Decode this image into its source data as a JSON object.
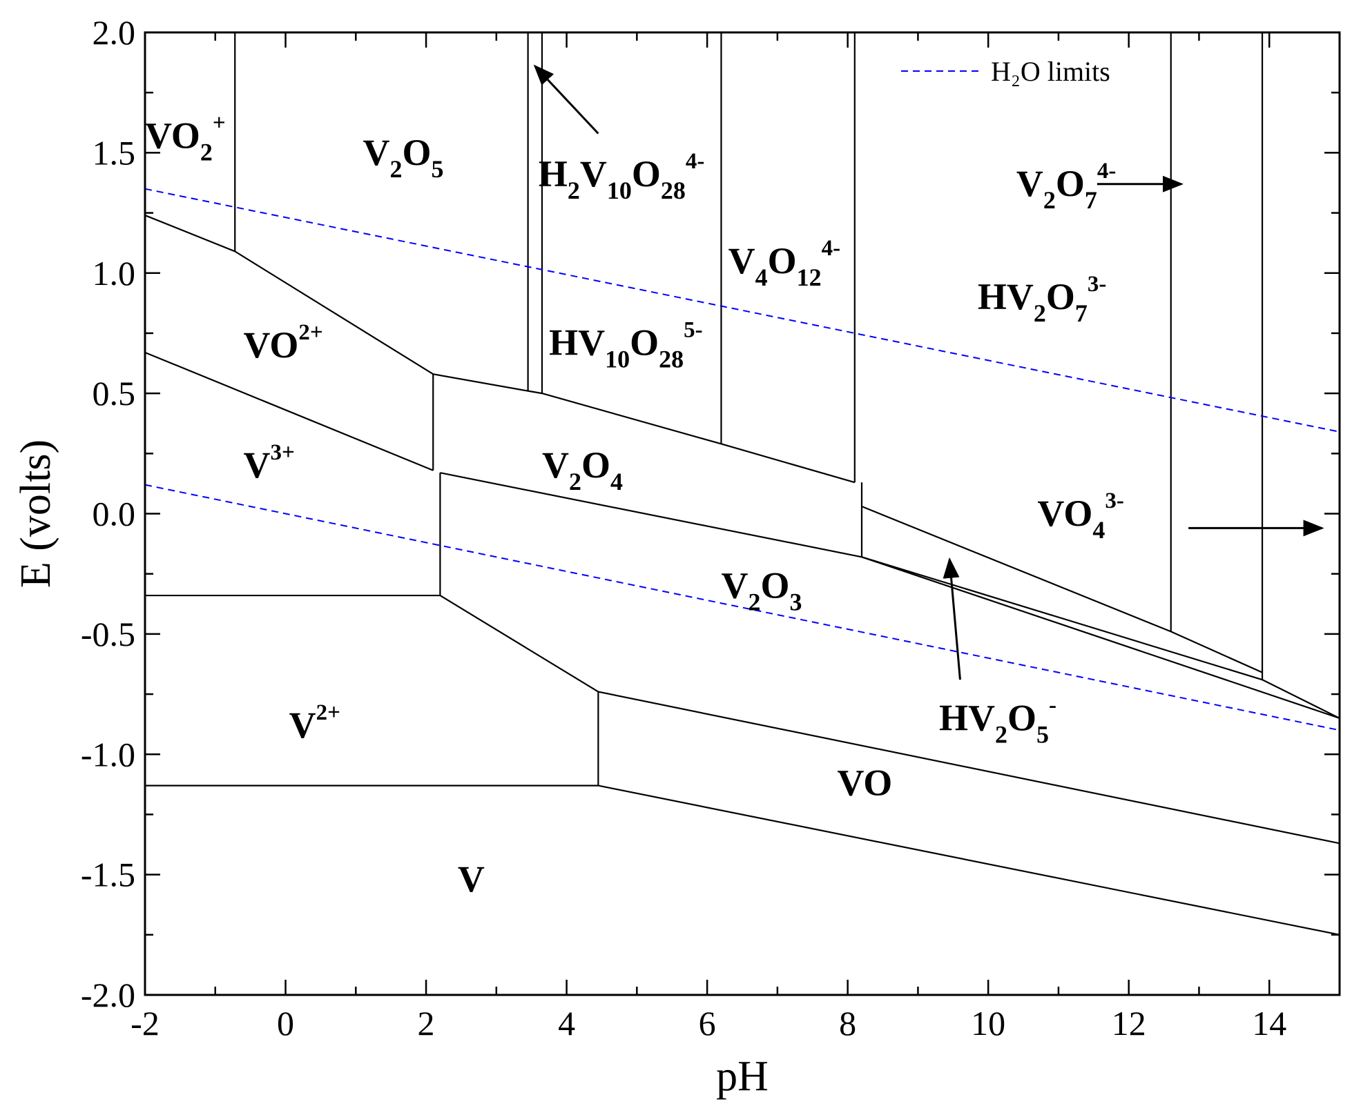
{
  "chart_data": {
    "type": "line",
    "title": "",
    "xlabel": "pH",
    "ylabel": "E (volts)",
    "xlim": [
      -2,
      15
    ],
    "ylim": [
      -2.0,
      2.0
    ],
    "x_ticks": [
      -2,
      0,
      2,
      4,
      6,
      8,
      10,
      12,
      14
    ],
    "y_ticks": [
      2.0,
      1.5,
      1.0,
      0.5,
      0.0,
      -0.5,
      -1.0,
      -1.5,
      -2.0
    ],
    "x_tick_labels": [
      "-2",
      "0",
      "2",
      "4",
      "6",
      "8",
      "10",
      "12",
      "14"
    ],
    "y_tick_labels": [
      "2.0",
      "1.5",
      "1.0",
      "0.5",
      "0.0",
      "-0.5",
      "-1.0",
      "-1.5",
      "-2.0"
    ],
    "grid": false,
    "legend": {
      "position": "top-right",
      "entries": [
        {
          "label": "H₂O limits",
          "color": "#0000ff",
          "style": "dashed"
        }
      ]
    },
    "water_limits": [
      {
        "x": [
          -2,
          15
        ],
        "y": [
          1.35,
          0.34
        ],
        "color": "#0000ff",
        "style": "dashed"
      },
      {
        "x": [
          -2,
          15
        ],
        "y": [
          0.12,
          -0.9
        ],
        "color": "#0000ff",
        "style": "dashed"
      }
    ],
    "boundaries": [
      {
        "x": [
          -2,
          -0.72,
          2.1
        ],
        "y": [
          1.24,
          1.09,
          0.58
        ]
      },
      {
        "x": [
          2.1,
          3.45,
          3.65,
          6.2,
          8.1
        ],
        "y": [
          0.58,
          0.51,
          0.5,
          0.29,
          0.13
        ]
      },
      {
        "x": [
          -2,
          2.1
        ],
        "y": [
          0.67,
          0.18
        ]
      },
      {
        "x": [
          2.2,
          8.2,
          15
        ],
        "y": [
          0.17,
          -0.18,
          -0.85
        ]
      },
      {
        "x": [
          8.2,
          12.6,
          13.9
        ],
        "y": [
          0.03,
          -0.49,
          -0.66
        ]
      },
      {
        "x": [
          8.2,
          13.9,
          15
        ],
        "y": [
          -0.18,
          -0.69,
          -0.85
        ]
      },
      {
        "x": [
          -2,
          2.2
        ],
        "y": [
          -0.34,
          -0.34
        ]
      },
      {
        "x": [
          2.2,
          4.45,
          15
        ],
        "y": [
          -0.34,
          -0.74,
          -1.37
        ]
      },
      {
        "x": [
          -2,
          4.45
        ],
        "y": [
          -1.13,
          -1.13
        ]
      },
      {
        "x": [
          4.45,
          15
        ],
        "y": [
          -1.13,
          -1.75
        ]
      },
      {
        "x": [
          -0.72,
          -0.72
        ],
        "y": [
          2.0,
          1.09
        ]
      },
      {
        "x": [
          3.45,
          3.45
        ],
        "y": [
          2.0,
          0.51
        ]
      },
      {
        "x": [
          3.65,
          3.65
        ],
        "y": [
          2.0,
          0.5
        ]
      },
      {
        "x": [
          6.2,
          6.2
        ],
        "y": [
          2.0,
          0.29
        ]
      },
      {
        "x": [
          8.1,
          8.1
        ],
        "y": [
          2.0,
          0.13
        ]
      },
      {
        "x": [
          12.6,
          12.6
        ],
        "y": [
          2.0,
          -0.49
        ]
      },
      {
        "x": [
          13.9,
          13.9
        ],
        "y": [
          2.0,
          -0.69
        ]
      },
      {
        "x": [
          2.1,
          2.1
        ],
        "y": [
          0.58,
          0.18
        ]
      },
      {
        "x": [
          2.2,
          2.2
        ],
        "y": [
          0.17,
          -0.34
        ]
      },
      {
        "x": [
          8.2,
          8.2
        ],
        "y": [
          0.13,
          -0.18
        ]
      },
      {
        "x": [
          4.45,
          4.45
        ],
        "y": [
          -0.74,
          -1.13
        ]
      }
    ],
    "regions": [
      {
        "parts": [
          [
            "VO",
            ""
          ],
          [
            "2",
            "sub"
          ],
          [
            "+",
            "sup"
          ]
        ],
        "x": -2.0,
        "y": 1.52
      },
      {
        "parts": [
          [
            "V",
            ""
          ],
          [
            "2",
            "sub"
          ],
          [
            "O",
            ""
          ],
          [
            "5",
            "sub"
          ]
        ],
        "x": 1.1,
        "y": 1.45
      },
      {
        "parts": [
          [
            "H",
            ""
          ],
          [
            "2",
            "sub"
          ],
          [
            "V",
            ""
          ],
          [
            "10",
            "sub"
          ],
          [
            "O",
            ""
          ],
          [
            "28",
            "sub"
          ],
          [
            "4-",
            "sup"
          ]
        ],
        "x": 3.6,
        "y": 1.36
      },
      {
        "parts": [
          [
            "V",
            ""
          ],
          [
            "4",
            "sub"
          ],
          [
            "O",
            ""
          ],
          [
            "12",
            "sub"
          ],
          [
            "4-",
            "sup"
          ]
        ],
        "x": 6.3,
        "y": 1.0
      },
      {
        "parts": [
          [
            "HV",
            ""
          ],
          [
            "10",
            "sub"
          ],
          [
            "O",
            ""
          ],
          [
            "28",
            "sub"
          ],
          [
            "5-",
            "sup"
          ]
        ],
        "x": 3.75,
        "y": 0.66
      },
      {
        "parts": [
          [
            "V",
            ""
          ],
          [
            "2",
            "sub"
          ],
          [
            "O",
            ""
          ],
          [
            "7",
            "sub"
          ],
          [
            "4-",
            "sup"
          ]
        ],
        "x": 10.4,
        "y": 1.32
      },
      {
        "parts": [
          [
            "HV",
            ""
          ],
          [
            "2",
            "sub"
          ],
          [
            "O",
            ""
          ],
          [
            "7",
            "sub"
          ],
          [
            "3-",
            "sup"
          ]
        ],
        "x": 9.85,
        "y": 0.85
      },
      {
        "parts": [
          [
            "VO",
            ""
          ],
          [
            "2+",
            "sup"
          ]
        ],
        "x": -0.6,
        "y": 0.65
      },
      {
        "parts": [
          [
            "V",
            ""
          ],
          [
            "3+",
            "sup"
          ]
        ],
        "x": -0.6,
        "y": 0.15
      },
      {
        "parts": [
          [
            "V",
            ""
          ],
          [
            "2",
            "sub"
          ],
          [
            "O",
            ""
          ],
          [
            "4",
            "sub"
          ]
        ],
        "x": 3.65,
        "y": 0.15
      },
      {
        "parts": [
          [
            "VO",
            ""
          ],
          [
            "4",
            "sub"
          ],
          [
            "3-",
            "sup"
          ]
        ],
        "x": 10.7,
        "y": -0.05
      },
      {
        "parts": [
          [
            "V",
            ""
          ],
          [
            "2",
            "sub"
          ],
          [
            "O",
            ""
          ],
          [
            "3",
            "sub"
          ]
        ],
        "x": 6.2,
        "y": -0.35
      },
      {
        "parts": [
          [
            "HV",
            ""
          ],
          [
            "2",
            "sub"
          ],
          [
            "O",
            ""
          ],
          [
            "5",
            "sub"
          ],
          [
            "-",
            "sup"
          ]
        ],
        "x": 9.3,
        "y": -0.9
      },
      {
        "parts": [
          [
            "V",
            ""
          ],
          [
            "2+",
            "sup"
          ]
        ],
        "x": 0.05,
        "y": -0.93
      },
      {
        "parts": [
          [
            "VO",
            ""
          ]
        ],
        "x": 7.85,
        "y": -1.17
      },
      {
        "parts": [
          [
            "V",
            ""
          ]
        ],
        "x": 2.45,
        "y": -1.57
      }
    ],
    "arrows": [
      {
        "from": [
          4.45,
          1.58
        ],
        "to": [
          3.55,
          1.86
        ]
      },
      {
        "from": [
          11.55,
          1.37
        ],
        "to": [
          12.75,
          1.37
        ]
      },
      {
        "from": [
          12.85,
          -0.06
        ],
        "to": [
          14.75,
          -0.06
        ]
      },
      {
        "from": [
          9.6,
          -0.69
        ],
        "to": [
          9.45,
          -0.19
        ]
      }
    ]
  }
}
